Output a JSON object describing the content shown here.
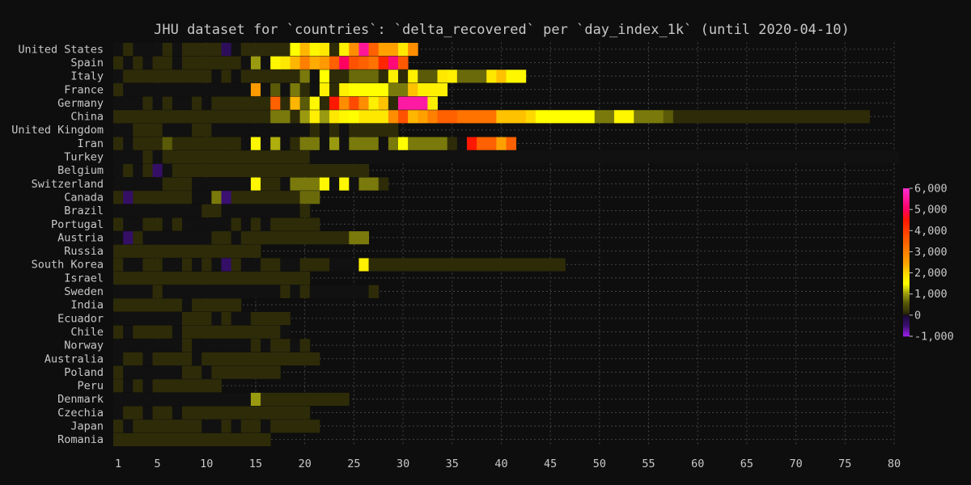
{
  "chart_data": {
    "type": "heatmap",
    "title": "JHU dataset for `countries`: `delta_recovered` per `day_index_1k` (until 2020-04-10)",
    "xlabel": "",
    "ylabel": "",
    "x_ticks": [
      1,
      5,
      10,
      15,
      20,
      25,
      30,
      35,
      40,
      45,
      50,
      55,
      60,
      65,
      70,
      75,
      80
    ],
    "xlim": [
      0.5,
      80
    ],
    "grid": true,
    "colorbar": {
      "placement": "right",
      "min": -1000,
      "max": 6000,
      "tick_values": [
        6000,
        5000,
        4000,
        3000,
        2000,
        1000,
        0,
        -1000
      ],
      "tick_labels": [
        "6,000",
        "5,000",
        "4,000",
        "3,000",
        "2,000",
        "1,000",
        "0",
        "-1,000"
      ],
      "colormap": [
        {
          "value": -1000,
          "color": "#a020f0"
        },
        {
          "value": -500,
          "color": "#3a1070"
        },
        {
          "value": -1,
          "color": "#1a0a3a"
        },
        {
          "value": 0,
          "color": "#111111"
        },
        {
          "value": 100,
          "color": "#2e2c08"
        },
        {
          "value": 600,
          "color": "#5a5a08"
        },
        {
          "value": 1000,
          "color": "#9a9a10"
        },
        {
          "value": 1500,
          "color": "#ffff00"
        },
        {
          "value": 2000,
          "color": "#ffd800"
        },
        {
          "value": 2500,
          "color": "#ffa000"
        },
        {
          "value": 3500,
          "color": "#ff6000"
        },
        {
          "value": 4500,
          "color": "#ff1800"
        },
        {
          "value": 5000,
          "color": "#ff0060"
        },
        {
          "value": 6000,
          "color": "#ff2cd0"
        }
      ]
    },
    "series": [
      {
        "name": "United States",
        "start": 1,
        "values": [
          0,
          100,
          0,
          0,
          0,
          100,
          0,
          100,
          100,
          100,
          100,
          -300,
          0,
          100,
          100,
          100,
          100,
          100,
          1500,
          2300,
          1600,
          1800,
          100,
          1700,
          2800,
          5500,
          3500,
          2500,
          2500,
          1800,
          2800
        ]
      },
      {
        "name": "Spain",
        "start": 1,
        "values": [
          100,
          0,
          100,
          0,
          100,
          100,
          0,
          100,
          100,
          100,
          100,
          100,
          100,
          0,
          1000,
          0,
          1600,
          1800,
          2300,
          3000,
          2400,
          2600,
          3500,
          5000,
          3700,
          3500,
          3200,
          4300,
          5200,
          3600
        ]
      },
      {
        "name": "Italy",
        "start": 1,
        "values": [
          0,
          100,
          100,
          100,
          100,
          100,
          100,
          100,
          100,
          100,
          0,
          100,
          0,
          100,
          100,
          100,
          100,
          100,
          100,
          800,
          0,
          1500,
          100,
          100,
          700,
          700,
          700,
          100,
          1700,
          100,
          1700,
          600,
          600,
          1800,
          1700,
          700,
          700,
          700,
          1800,
          2200,
          1600,
          1600
        ]
      },
      {
        "name": "France",
        "start": 1,
        "values": [
          100,
          0,
          0,
          0,
          0,
          0,
          0,
          0,
          0,
          0,
          0,
          0,
          0,
          0,
          2600,
          0,
          600,
          0,
          800,
          100,
          0,
          1700,
          100,
          1700,
          1500,
          1500,
          1500,
          1500,
          800,
          800,
          2200,
          1700,
          1700,
          1700
        ]
      },
      {
        "name": "Germany",
        "start": 1,
        "values": [
          0,
          0,
          0,
          100,
          0,
          100,
          0,
          0,
          100,
          0,
          100,
          100,
          100,
          100,
          100,
          100,
          3500,
          100,
          2300,
          600,
          1600,
          100,
          4500,
          2800,
          3800,
          2800,
          1700,
          2200,
          100,
          5600,
          5600,
          5600,
          1700
        ]
      },
      {
        "name": "China",
        "start": 1,
        "values": [
          100,
          100,
          100,
          100,
          100,
          100,
          100,
          100,
          100,
          100,
          100,
          100,
          100,
          100,
          100,
          100,
          800,
          800,
          100,
          1000,
          1700,
          1000,
          1800,
          1600,
          1500,
          1800,
          1800,
          1800,
          2800,
          3700,
          2300,
          2500,
          3000,
          3500,
          3500,
          3200,
          3200,
          3200,
          3200,
          2200,
          2200,
          2200,
          2000,
          1500,
          1500,
          1500,
          1500,
          1500,
          1500,
          800,
          800,
          1600,
          1600,
          800,
          800,
          800,
          600,
          100,
          100,
          100,
          100,
          100,
          100,
          100,
          100,
          100,
          100,
          100,
          100,
          100,
          100,
          100,
          100,
          100,
          100,
          100,
          100
        ]
      },
      {
        "name": "United Kingdom",
        "start": 1,
        "values": [
          0,
          0,
          100,
          100,
          100,
          0,
          0,
          0,
          100,
          100,
          0,
          0,
          0,
          0,
          0,
          0,
          0,
          0,
          0,
          0,
          100,
          0,
          100,
          0,
          100,
          100,
          100,
          100,
          100
        ]
      },
      {
        "name": "Iran",
        "start": 1,
        "values": [
          100,
          0,
          100,
          100,
          100,
          600,
          100,
          100,
          100,
          100,
          100,
          100,
          100,
          0,
          1600,
          0,
          1100,
          0,
          100,
          800,
          800,
          0,
          1000,
          0,
          800,
          800,
          800,
          0,
          800,
          1500,
          800,
          800,
          800,
          800,
          100,
          0,
          4500,
          3500,
          3500,
          2500,
          3500
        ]
      },
      {
        "name": "Turkey",
        "start": 1,
        "values": [
          0,
          0,
          0,
          100,
          0,
          100,
          100,
          100,
          100,
          100,
          100,
          100,
          100,
          100,
          100,
          100,
          100,
          100,
          100,
          100,
          0,
          0,
          0,
          0,
          0,
          0,
          0,
          0,
          0,
          0,
          0,
          0,
          0,
          0,
          0,
          0,
          0,
          0,
          0,
          0,
          0,
          0,
          0,
          0,
          0,
          0,
          0,
          0,
          0,
          0,
          0,
          0,
          0,
          0,
          0,
          0,
          0,
          0,
          0,
          0,
          0,
          0,
          0,
          0,
          0,
          0,
          0,
          0,
          0,
          0,
          0,
          0,
          0,
          0,
          0,
          0,
          0,
          0,
          0,
          0
        ]
      },
      {
        "name": "Belgium",
        "start": 1,
        "values": [
          0,
          100,
          0,
          100,
          -400,
          0,
          100,
          100,
          100,
          100,
          100,
          100,
          100,
          100,
          100,
          100,
          100,
          100,
          100,
          100,
          100,
          100,
          100,
          100,
          100,
          100
        ]
      },
      {
        "name": "Switzerland",
        "start": 1,
        "values": [
          0,
          0,
          0,
          0,
          0,
          100,
          100,
          100,
          0,
          0,
          0,
          0,
          0,
          0,
          1600,
          100,
          100,
          0,
          800,
          800,
          800,
          1600,
          0,
          1600,
          0,
          800,
          800,
          100
        ]
      },
      {
        "name": "Canada",
        "start": 1,
        "values": [
          100,
          -400,
          100,
          100,
          100,
          100,
          100,
          100,
          0,
          0,
          800,
          -500,
          100,
          100,
          100,
          100,
          100,
          100,
          100,
          700,
          700
        ]
      },
      {
        "name": "Brazil",
        "start": 1,
        "values": [
          0,
          0,
          0,
          0,
          0,
          0,
          0,
          0,
          0,
          100,
          100,
          0,
          0,
          0,
          0,
          0,
          0,
          0,
          0,
          100
        ]
      },
      {
        "name": "Portugal",
        "start": 1,
        "values": [
          100,
          0,
          0,
          100,
          100,
          0,
          100,
          0,
          0,
          0,
          0,
          0,
          100,
          0,
          100,
          0,
          100,
          100,
          100,
          100,
          100
        ]
      },
      {
        "name": "Austria",
        "start": 1,
        "values": [
          0,
          -400,
          100,
          0,
          0,
          0,
          0,
          0,
          0,
          0,
          100,
          100,
          0,
          100,
          100,
          100,
          100,
          100,
          100,
          100,
          100,
          100,
          100,
          100,
          800,
          800
        ]
      },
      {
        "name": "Russia",
        "start": 1,
        "values": [
          100,
          100,
          100,
          100,
          100,
          100,
          100,
          100,
          100,
          100,
          100,
          100,
          100,
          100,
          100
        ]
      },
      {
        "name": "South Korea",
        "start": 1,
        "values": [
          100,
          0,
          0,
          100,
          100,
          0,
          0,
          100,
          0,
          100,
          0,
          -400,
          100,
          0,
          0,
          100,
          100,
          0,
          0,
          100,
          100,
          100,
          0,
          0,
          0,
          1700,
          100,
          100,
          100,
          100,
          100,
          100,
          100,
          100,
          100,
          100,
          100,
          100,
          100,
          100,
          100,
          100,
          100,
          100,
          100,
          100
        ]
      },
      {
        "name": "Israel",
        "start": 1,
        "values": [
          100,
          100,
          100,
          100,
          100,
          100,
          100,
          100,
          100,
          100,
          100,
          100,
          100,
          100,
          100,
          100,
          100,
          100,
          100,
          100
        ]
      },
      {
        "name": "Sweden",
        "start": 1,
        "values": [
          0,
          0,
          0,
          0,
          100,
          0,
          0,
          0,
          0,
          0,
          0,
          0,
          0,
          0,
          0,
          0,
          0,
          100,
          0,
          100,
          0,
          0,
          0,
          0,
          0,
          0,
          100
        ]
      },
      {
        "name": "India",
        "start": 1,
        "values": [
          100,
          100,
          100,
          100,
          100,
          100,
          100,
          0,
          100,
          100,
          100,
          100,
          100
        ]
      },
      {
        "name": "Ecuador",
        "start": 1,
        "values": [
          0,
          0,
          0,
          0,
          0,
          0,
          0,
          100,
          100,
          100,
          0,
          100,
          0,
          0,
          100,
          100,
          100,
          100
        ]
      },
      {
        "name": "Chile",
        "start": 1,
        "values": [
          100,
          0,
          100,
          100,
          100,
          100,
          0,
          100,
          100,
          100,
          100,
          100,
          100,
          100,
          100,
          100,
          100,
          0
        ]
      },
      {
        "name": "Norway",
        "start": 1,
        "values": [
          0,
          0,
          0,
          0,
          0,
          0,
          0,
          100,
          0,
          0,
          0,
          0,
          0,
          0,
          100,
          0,
          100,
          100,
          0,
          100
        ]
      },
      {
        "name": "Australia",
        "start": 1,
        "values": [
          0,
          100,
          100,
          0,
          100,
          100,
          100,
          100,
          0,
          100,
          100,
          100,
          100,
          100,
          100,
          100,
          100,
          100,
          100,
          100,
          100
        ]
      },
      {
        "name": "Poland",
        "start": 1,
        "values": [
          100,
          0,
          0,
          0,
          0,
          0,
          0,
          100,
          100,
          0,
          100,
          100,
          100,
          100,
          100,
          100,
          100
        ]
      },
      {
        "name": "Peru",
        "start": 1,
        "values": [
          100,
          0,
          100,
          0,
          100,
          100,
          100,
          100,
          100,
          100,
          100
        ]
      },
      {
        "name": "Denmark",
        "start": 1,
        "values": [
          0,
          0,
          0,
          0,
          0,
          0,
          0,
          0,
          0,
          0,
          0,
          0,
          0,
          0,
          1000,
          100,
          100,
          100,
          100,
          100,
          100,
          100,
          100,
          100
        ]
      },
      {
        "name": "Czechia",
        "start": 1,
        "values": [
          0,
          100,
          100,
          0,
          100,
          100,
          0,
          100,
          100,
          100,
          100,
          100,
          100,
          100,
          100,
          100,
          100,
          100,
          100,
          100
        ]
      },
      {
        "name": "Japan",
        "start": 1,
        "values": [
          100,
          0,
          100,
          100,
          100,
          100,
          100,
          100,
          100,
          0,
          0,
          100,
          0,
          100,
          100,
          0,
          100,
          100,
          100,
          100,
          100
        ]
      },
      {
        "name": "Romania",
        "start": 1,
        "values": [
          100,
          100,
          100,
          100,
          100,
          100,
          100,
          100,
          100,
          100,
          100,
          100,
          100,
          100,
          100,
          100
        ]
      }
    ]
  }
}
